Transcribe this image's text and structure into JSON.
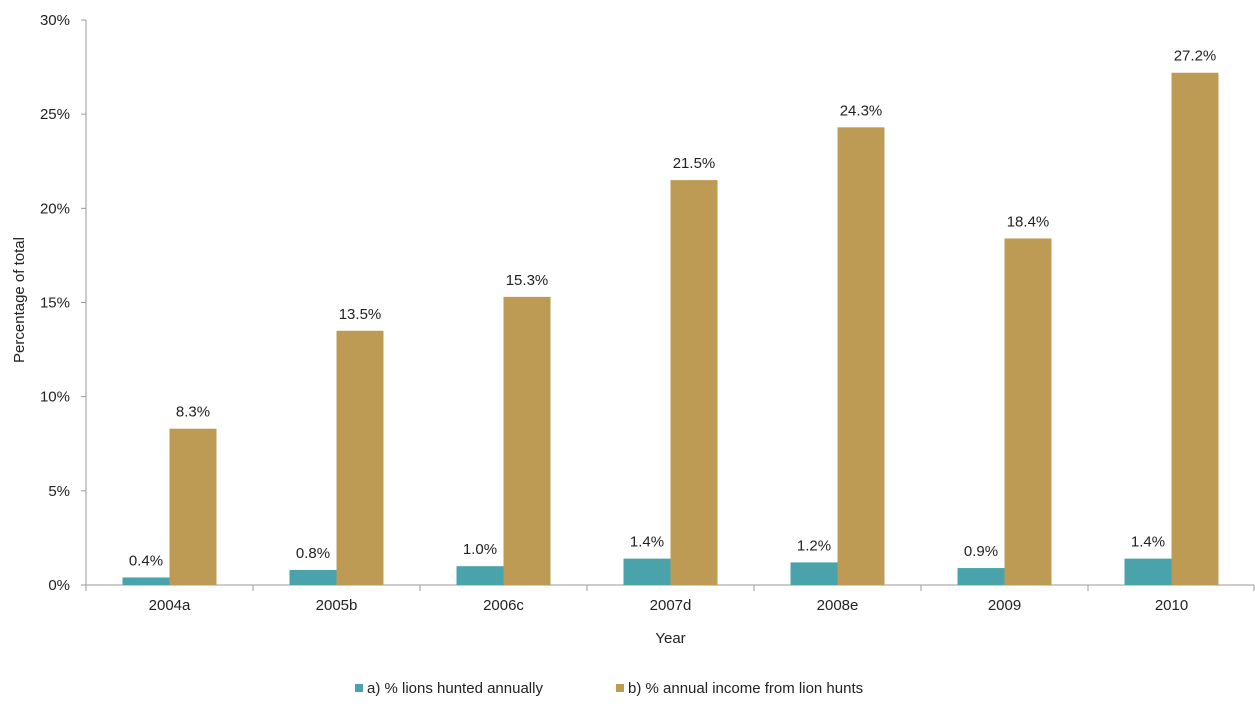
{
  "chart_data": {
    "type": "bar",
    "categories": [
      "2004a",
      "2005b",
      "2006c",
      "2007d",
      "2008e",
      "2009",
      "2010"
    ],
    "series": [
      {
        "name": "a) % lions hunted annually",
        "color": "#4aa3ab",
        "values": [
          0.4,
          0.8,
          1.0,
          1.4,
          1.2,
          0.9,
          1.4
        ],
        "labels": [
          "0.4%",
          "0.8%",
          "1.0%",
          "1.4%",
          "1.2%",
          "0.9%",
          "1.4%"
        ]
      },
      {
        "name": "b) % annual income from lion hunts",
        "color": "#bd9b55",
        "values": [
          8.3,
          13.5,
          15.3,
          21.5,
          24.3,
          18.4,
          27.2
        ],
        "labels": [
          "8.3%",
          "13.5%",
          "15.3%",
          "21.5%",
          "24.3%",
          "18.4%",
          "27.2%"
        ]
      }
    ],
    "xlabel": "Year",
    "ylabel": "Percentage of total",
    "ylim": [
      0,
      30
    ],
    "yticks": [
      0,
      5,
      10,
      15,
      20,
      25,
      30
    ],
    "ytick_labels": [
      "0%",
      "5%",
      "10%",
      "15%",
      "20%",
      "25%",
      "30%"
    ],
    "grid": false,
    "legend_position": "bottom"
  }
}
